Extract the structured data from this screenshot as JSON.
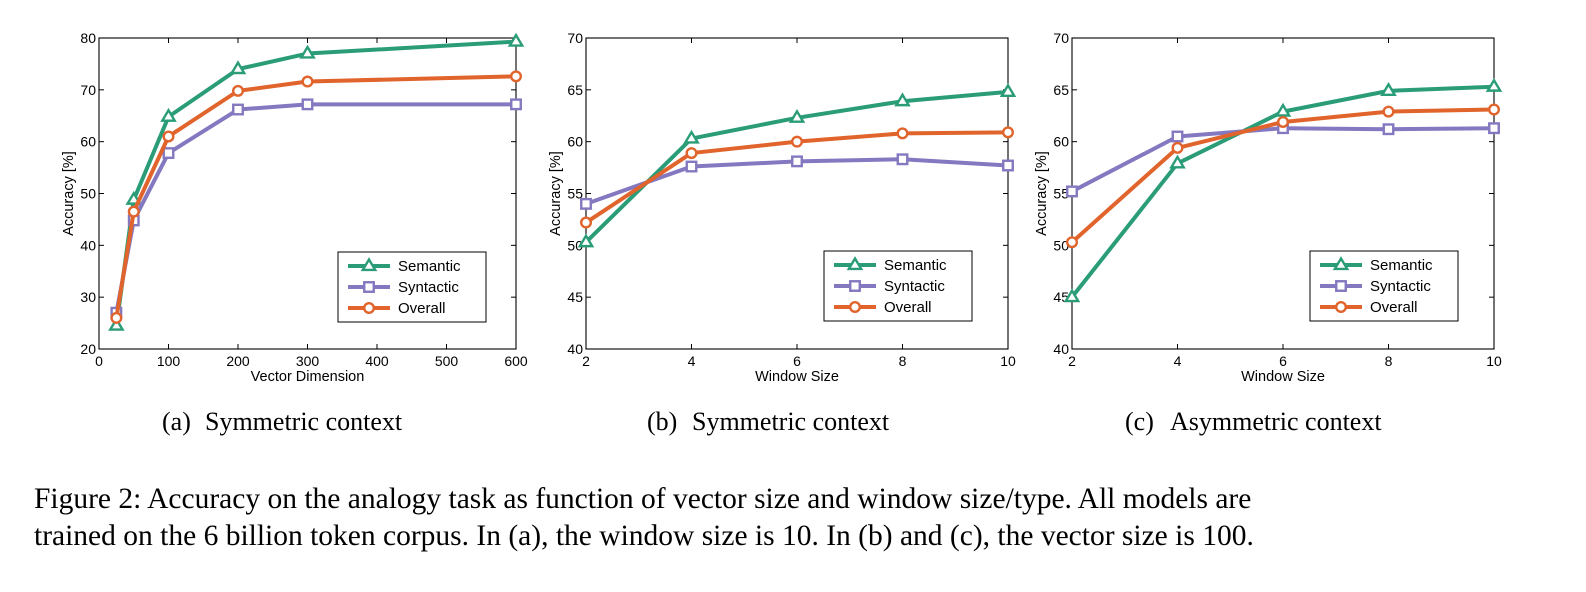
{
  "colors": {
    "Semantic": "#2a9d78",
    "Syntactic": "#8478c0",
    "Overall": "#e0642c"
  },
  "chart_data": [
    {
      "type": "line",
      "subcaption_label": "(a)",
      "subcaption_text": "Symmetric context",
      "xlabel": "Vector Dimension",
      "ylabel": "Accuracy [%]",
      "xlim": [
        0,
        600
      ],
      "ylim": [
        20,
        80
      ],
      "xticks": [
        0,
        100,
        200,
        300,
        400,
        500,
        600
      ],
      "yticks": [
        20,
        30,
        40,
        50,
        60,
        70,
        80
      ],
      "x": [
        25,
        50,
        100,
        200,
        300,
        600
      ],
      "series": [
        {
          "name": "Semantic",
          "marker": "triangle",
          "values": [
            24.5,
            48.8,
            64.8,
            74.0,
            77.0,
            79.3
          ]
        },
        {
          "name": "Syntactic",
          "marker": "square",
          "values": [
            27.0,
            44.8,
            57.8,
            66.2,
            67.2,
            67.2
          ]
        },
        {
          "name": "Overall",
          "marker": "circle",
          "values": [
            26.0,
            46.5,
            61.0,
            69.8,
            71.6,
            72.6
          ]
        }
      ],
      "legend": "bottom-right",
      "grid": false
    },
    {
      "type": "line",
      "subcaption_label": "(b)",
      "subcaption_text": "Symmetric context",
      "xlabel": "Window Size",
      "ylabel": "Accuracy [%]",
      "xlim": [
        2,
        10
      ],
      "ylim": [
        40,
        70
      ],
      "xticks": [
        2,
        4,
        6,
        8,
        10
      ],
      "yticks": [
        40,
        45,
        50,
        55,
        60,
        65,
        70
      ],
      "x": [
        2,
        4,
        6,
        8,
        10
      ],
      "series": [
        {
          "name": "Semantic",
          "marker": "triangle",
          "values": [
            50.3,
            60.3,
            62.3,
            63.9,
            64.8
          ]
        },
        {
          "name": "Syntactic",
          "marker": "square",
          "values": [
            54.0,
            57.6,
            58.1,
            58.3,
            57.7
          ]
        },
        {
          "name": "Overall",
          "marker": "circle",
          "values": [
            52.2,
            58.9,
            60.0,
            60.8,
            60.9
          ]
        }
      ],
      "legend": "bottom-right",
      "grid": false
    },
    {
      "type": "line",
      "subcaption_label": "(c)",
      "subcaption_text": "Asymmetric context",
      "xlabel": "Window Size",
      "ylabel": "Accuracy [%]",
      "xlim": [
        2,
        10
      ],
      "ylim": [
        40,
        70
      ],
      "xticks": [
        2,
        4,
        6,
        8,
        10
      ],
      "yticks": [
        40,
        45,
        50,
        55,
        60,
        65,
        70
      ],
      "x": [
        2,
        4,
        6,
        8,
        10
      ],
      "series": [
        {
          "name": "Semantic",
          "marker": "triangle",
          "values": [
            45.0,
            57.9,
            62.9,
            64.9,
            65.3
          ]
        },
        {
          "name": "Syntactic",
          "marker": "square",
          "values": [
            55.2,
            60.5,
            61.3,
            61.2,
            61.3
          ]
        },
        {
          "name": "Overall",
          "marker": "circle",
          "values": [
            50.3,
            59.4,
            61.9,
            62.9,
            63.1
          ]
        }
      ],
      "legend": "bottom-right",
      "grid": false
    }
  ],
  "caption": {
    "line1": "Figure 2: Accuracy on the analogy task as function of vector size and window size/type. All models are",
    "line2": "trained on the 6 billion token corpus. In (a), the window size is 10. In (b) and (c), the vector size is 100."
  }
}
